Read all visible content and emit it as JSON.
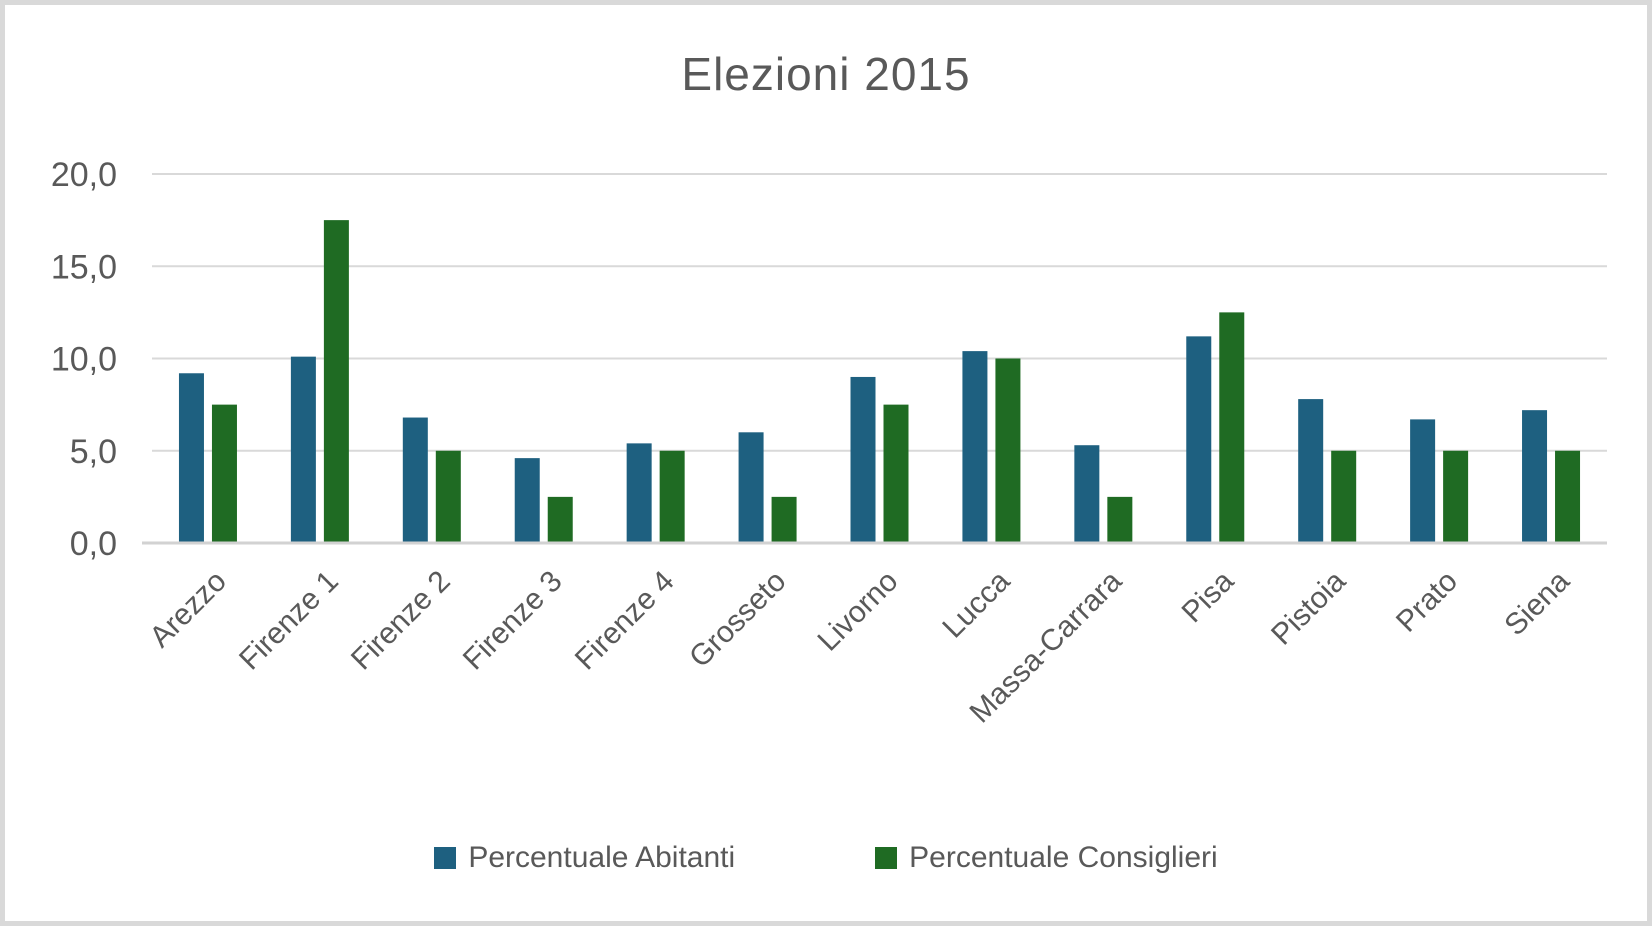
{
  "chart_data": {
    "type": "bar",
    "title": "Elezioni 2015",
    "categories": [
      "Arezzo",
      "Firenze 1",
      "Firenze 2",
      "Firenze 3",
      "Firenze 4",
      "Grosseto",
      "Livorno",
      "Lucca",
      "Massa-Carrara",
      "Pisa",
      "Pistoia",
      "Prato",
      "Siena"
    ],
    "series": [
      {
        "name": "Percentuale Abitanti",
        "color": "#1E6080",
        "values": [
          9.2,
          10.1,
          6.8,
          4.6,
          5.4,
          6.0,
          9.0,
          10.4,
          5.3,
          11.2,
          7.8,
          6.7,
          7.2
        ]
      },
      {
        "name": "Percentuale Consiglieri",
        "color": "#1F6B23",
        "values": [
          7.5,
          17.5,
          5.0,
          2.5,
          5.0,
          2.5,
          7.5,
          10.0,
          2.5,
          12.5,
          5.0,
          5.0,
          5.0
        ]
      }
    ],
    "xlabel": "",
    "ylabel": "",
    "ylim": [
      0,
      20
    ],
    "y_ticks": [
      {
        "label": "0,0",
        "value": 0
      },
      {
        "label": "5,0",
        "value": 5
      },
      {
        "label": "10,0",
        "value": 10
      },
      {
        "label": "15,0",
        "value": 15
      },
      {
        "label": "20,0",
        "value": 20
      }
    ],
    "grid": true,
    "legend_position": "bottom",
    "colors": {
      "text": "#595959",
      "gridline": "#d9d9d9",
      "axis_line": "#d2d2d2",
      "frame_border": "#d9d9d9",
      "background": "#ffffff"
    }
  }
}
